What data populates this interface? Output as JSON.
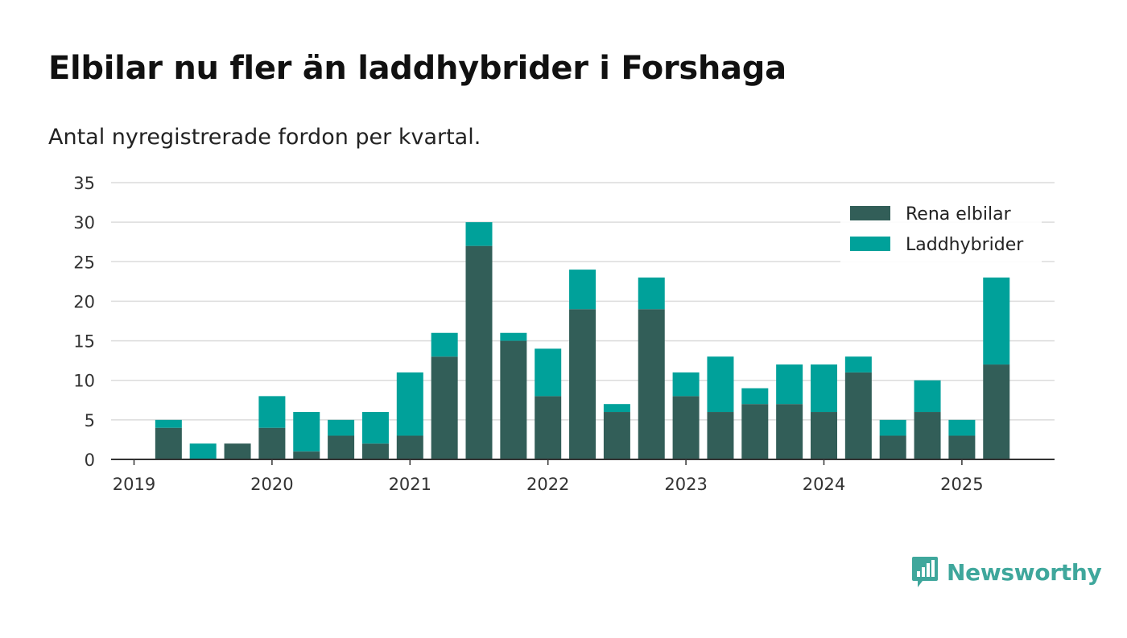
{
  "header": {
    "title": "Elbilar nu fler än laddhybrider i Forshaga",
    "subtitle": "Antal nyregistrerade fordon per kvartal."
  },
  "brand": {
    "name": "Newsworthy",
    "icon": "newsworthy-logo-icon",
    "color": "#3fa79c"
  },
  "chart_data": {
    "type": "bar",
    "stacked": true,
    "categories": [
      "2019 Q1",
      "2019 Q2",
      "2019 Q3",
      "2019 Q4",
      "2020 Q1",
      "2020 Q2",
      "2020 Q3",
      "2020 Q4",
      "2021 Q1",
      "2021 Q2",
      "2021 Q3",
      "2021 Q4",
      "2022 Q1",
      "2022 Q2",
      "2022 Q3",
      "2022 Q4",
      "2023 Q1",
      "2023 Q2",
      "2023 Q3",
      "2023 Q4",
      "2024 Q1",
      "2024 Q2",
      "2024 Q3",
      "2024 Q4",
      "2025 Q1",
      "2025 Q2"
    ],
    "series": [
      {
        "name": "Rena elbilar",
        "color": "#325e58",
        "values": [
          0,
          4,
          0,
          2,
          4,
          1,
          3,
          2,
          3,
          13,
          27,
          15,
          8,
          19,
          6,
          19,
          8,
          6,
          7,
          7,
          6,
          11,
          3,
          6,
          3,
          12
        ]
      },
      {
        "name": "Laddhybrider",
        "color": "#00a19a",
        "values": [
          0,
          1,
          2,
          0,
          4,
          5,
          2,
          4,
          8,
          3,
          3,
          1,
          6,
          5,
          1,
          4,
          3,
          7,
          2,
          5,
          6,
          2,
          2,
          4,
          2,
          11
        ]
      }
    ],
    "x_tick_labels": [
      "2019",
      "2020",
      "2021",
      "2022",
      "2023",
      "2024",
      "2025"
    ],
    "y_ticks": [
      0,
      5,
      10,
      15,
      20,
      25,
      30,
      35
    ],
    "ylim": [
      0,
      35
    ],
    "grid": true,
    "legend_position": "top-right",
    "xlabel": "",
    "ylabel": ""
  }
}
